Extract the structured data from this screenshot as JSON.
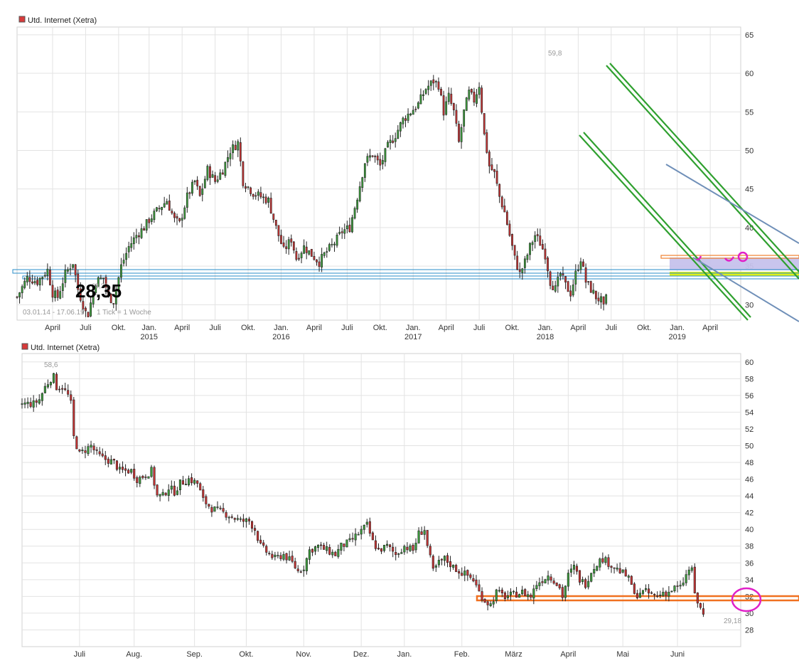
{
  "chart_data": [
    {
      "type": "candlestick",
      "title": "Utd. Internet (Xetra)",
      "legend_marker_color": "#d83a3a",
      "period_label": "03.01.14 - 17.06.19",
      "tick_label": "1 Tick = 1 Woche",
      "price_annotation": "28,35",
      "high_label": "59,8",
      "low_label": "28,35",
      "ylim": [
        28,
        66
      ],
      "yticks": [
        30,
        35,
        40,
        45,
        50,
        55,
        60,
        65
      ],
      "xlim": [
        0,
        285
      ],
      "x_month_ticks": [
        {
          "x": 14,
          "label": "April"
        },
        {
          "x": 27,
          "label": "Juli"
        },
        {
          "x": 40,
          "label": "Okt."
        },
        {
          "x": 52,
          "label": "Jan."
        },
        {
          "x": 65,
          "label": "April"
        },
        {
          "x": 78,
          "label": "Juli"
        },
        {
          "x": 91,
          "label": "Okt."
        },
        {
          "x": 104,
          "label": "Jan."
        },
        {
          "x": 117,
          "label": "April"
        },
        {
          "x": 130,
          "label": "Juli"
        },
        {
          "x": 143,
          "label": "Okt."
        },
        {
          "x": 156,
          "label": "Jan."
        },
        {
          "x": 169,
          "label": "April"
        },
        {
          "x": 182,
          "label": "Juli"
        },
        {
          "x": 195,
          "label": "Okt."
        },
        {
          "x": 208,
          "label": "Jan."
        },
        {
          "x": 221,
          "label": "April"
        },
        {
          "x": 234,
          "label": "Juli"
        },
        {
          "x": 247,
          "label": "Okt."
        },
        {
          "x": 260,
          "label": "Jan."
        },
        {
          "x": 273,
          "label": "April"
        }
      ],
      "x_year_ticks": [
        {
          "x": 52,
          "label": "2015"
        },
        {
          "x": 104,
          "label": "2016"
        },
        {
          "x": 156,
          "label": "2017"
        },
        {
          "x": 208,
          "label": "2018"
        },
        {
          "x": 260,
          "label": "2019"
        }
      ],
      "anchors": [
        [
          0,
          31
        ],
        [
          4,
          33.5
        ],
        [
          8,
          33
        ],
        [
          12,
          34.5
        ],
        [
          14,
          31.5
        ],
        [
          16,
          31
        ],
        [
          19,
          34
        ],
        [
          22,
          35.5
        ],
        [
          24,
          32
        ],
        [
          27,
          29
        ],
        [
          28,
          28.8
        ],
        [
          31,
          33
        ],
        [
          34,
          33.5
        ],
        [
          36,
          31
        ],
        [
          38,
          30.5
        ],
        [
          41,
          35
        ],
        [
          44,
          37.5
        ],
        [
          47,
          39
        ],
        [
          50,
          40
        ],
        [
          52,
          41
        ],
        [
          56,
          42.5
        ],
        [
          59,
          43.5
        ],
        [
          62,
          41
        ],
        [
          64,
          40.5
        ],
        [
          67,
          44
        ],
        [
          70,
          46
        ],
        [
          72,
          44
        ],
        [
          75,
          47.5
        ],
        [
          78,
          46
        ],
        [
          81,
          47.5
        ],
        [
          84,
          50
        ],
        [
          87,
          51
        ],
        [
          89,
          46
        ],
        [
          93,
          44.5
        ],
        [
          96,
          44
        ],
        [
          99,
          43.5
        ],
        [
          102,
          40
        ],
        [
          105,
          37
        ],
        [
          108,
          38.5
        ],
        [
          110,
          36
        ],
        [
          113,
          37.5
        ],
        [
          116,
          36.5
        ],
        [
          119,
          35.5
        ],
        [
          121,
          36.5
        ],
        [
          125,
          38
        ],
        [
          128,
          39.5
        ],
        [
          131,
          40
        ],
        [
          134,
          44
        ],
        [
          137,
          48.5
        ],
        [
          140,
          49.5
        ],
        [
          143,
          48
        ],
        [
          146,
          50.5
        ],
        [
          149,
          52
        ],
        [
          152,
          54
        ],
        [
          155,
          55
        ],
        [
          158,
          56
        ],
        [
          161,
          58
        ],
        [
          164,
          59
        ],
        [
          166,
          58.5
        ],
        [
          168,
          55
        ],
        [
          170,
          57
        ],
        [
          172,
          55
        ],
        [
          174,
          51
        ],
        [
          176,
          55
        ],
        [
          178,
          57.5
        ],
        [
          180,
          56.5
        ],
        [
          182,
          58.5
        ],
        [
          184,
          52
        ],
        [
          186,
          48
        ],
        [
          188,
          47
        ],
        [
          190,
          44
        ],
        [
          192,
          42
        ],
        [
          194,
          39
        ],
        [
          196,
          36
        ],
        [
          198,
          34
        ],
        [
          200,
          35.5
        ],
        [
          202,
          37.5
        ],
        [
          204,
          39
        ],
        [
          206,
          38
        ],
        [
          208,
          36.5
        ],
        [
          210,
          33
        ],
        [
          212,
          32
        ],
        [
          214,
          34
        ],
        [
          216,
          32.5
        ],
        [
          218,
          31.5
        ],
        [
          220,
          34
        ],
        [
          222,
          36
        ],
        [
          224,
          33
        ],
        [
          226,
          32
        ],
        [
          228,
          31
        ],
        [
          230,
          30.5
        ],
        [
          231,
          29.5
        ],
        [
          232,
          30.8
        ]
      ]
    },
    {
      "type": "candlestick",
      "title": "Utd. Internet (Xetra)",
      "legend_marker_color": "#d83a3a",
      "high_label": "58,6",
      "low_label": "29,18",
      "ylim": [
        26,
        61
      ],
      "yticks": [
        28,
        30,
        32,
        34,
        36,
        38,
        40,
        42,
        44,
        46,
        48,
        50,
        52,
        54,
        56,
        58,
        60
      ],
      "xlim": [
        0,
        250
      ],
      "x_month_ticks": [
        {
          "x": 20,
          "label": "Juli"
        },
        {
          "x": 39,
          "label": "Aug."
        },
        {
          "x": 60,
          "label": "Sep."
        },
        {
          "x": 78,
          "label": "Okt."
        },
        {
          "x": 98,
          "label": "Nov."
        },
        {
          "x": 118,
          "label": "Dez."
        },
        {
          "x": 133,
          "label": "Jan."
        },
        {
          "x": 153,
          "label": "Feb."
        },
        {
          "x": 171,
          "label": "März"
        },
        {
          "x": 190,
          "label": "April"
        },
        {
          "x": 209,
          "label": "Mai"
        },
        {
          "x": 228,
          "label": "Juni"
        }
      ],
      "anchors": [
        [
          0,
          55
        ],
        [
          4,
          55
        ],
        [
          6,
          55.5
        ],
        [
          8,
          57
        ],
        [
          10,
          58
        ],
        [
          11,
          58.2
        ],
        [
          12,
          57
        ],
        [
          14,
          57
        ],
        [
          16,
          56
        ],
        [
          17,
          55
        ],
        [
          18,
          51
        ],
        [
          20,
          49
        ],
        [
          22,
          49.5
        ],
        [
          24,
          50
        ],
        [
          26,
          49
        ],
        [
          28,
          48.5
        ],
        [
          32,
          48
        ],
        [
          34,
          47
        ],
        [
          38,
          47
        ],
        [
          40,
          46
        ],
        [
          43,
          46.5
        ],
        [
          45,
          47
        ],
        [
          47,
          44
        ],
        [
          49,
          44
        ],
        [
          51,
          45
        ],
        [
          53,
          44.5
        ],
        [
          55,
          45.5
        ],
        [
          58,
          46
        ],
        [
          61,
          45.5
        ],
        [
          63,
          43.5
        ],
        [
          66,
          42.5
        ],
        [
          70,
          42
        ],
        [
          73,
          41.5
        ],
        [
          76,
          41
        ],
        [
          79,
          41
        ],
        [
          81,
          40
        ],
        [
          83,
          38
        ],
        [
          86,
          37
        ],
        [
          88,
          36.5
        ],
        [
          91,
          37
        ],
        [
          94,
          36
        ],
        [
          96,
          35
        ],
        [
          98,
          35.5
        ],
        [
          100,
          37.5
        ],
        [
          103,
          38
        ],
        [
          106,
          37.5
        ],
        [
          109,
          37
        ],
        [
          111,
          38
        ],
        [
          114,
          38.5
        ],
        [
          117,
          39.5
        ],
        [
          120,
          40.5
        ],
        [
          122,
          38.5
        ],
        [
          124,
          37.5
        ],
        [
          127,
          38
        ],
        [
          130,
          37
        ],
        [
          133,
          38
        ],
        [
          136,
          37.5
        ],
        [
          138,
          39.5
        ],
        [
          140,
          40
        ],
        [
          141,
          38
        ],
        [
          143,
          35
        ],
        [
          145,
          36
        ],
        [
          147,
          36.5
        ],
        [
          150,
          35.5
        ],
        [
          152,
          35
        ],
        [
          155,
          34.5
        ],
        [
          157,
          34
        ],
        [
          159,
          32.5
        ],
        [
          161,
          31.5
        ],
        [
          163,
          31
        ],
        [
          165,
          32.5
        ],
        [
          168,
          32
        ],
        [
          171,
          32.2
        ],
        [
          174,
          32.5
        ],
        [
          177,
          32
        ],
        [
          179,
          33.5
        ],
        [
          181,
          34
        ],
        [
          183,
          34.5
        ],
        [
          185,
          34
        ],
        [
          187,
          33
        ],
        [
          188,
          32
        ],
        [
          190,
          34.5
        ],
        [
          192,
          35.5
        ],
        [
          194,
          34
        ],
        [
          196,
          33.5
        ],
        [
          198,
          35
        ],
        [
          200,
          36
        ],
        [
          202,
          36.5
        ],
        [
          204,
          36
        ],
        [
          206,
          35.5
        ],
        [
          208,
          35
        ],
        [
          210,
          34.5
        ],
        [
          212,
          33.5
        ],
        [
          213,
          32
        ],
        [
          215,
          32.5
        ],
        [
          217,
          32.5
        ],
        [
          219,
          32.2
        ],
        [
          221,
          32
        ],
        [
          223,
          32.5
        ],
        [
          225,
          32.5
        ],
        [
          227,
          33
        ],
        [
          229,
          33
        ],
        [
          231,
          34.5
        ],
        [
          233,
          35.5
        ],
        [
          234,
          32
        ],
        [
          236,
          30.5
        ],
        [
          237,
          30
        ]
      ]
    }
  ]
}
